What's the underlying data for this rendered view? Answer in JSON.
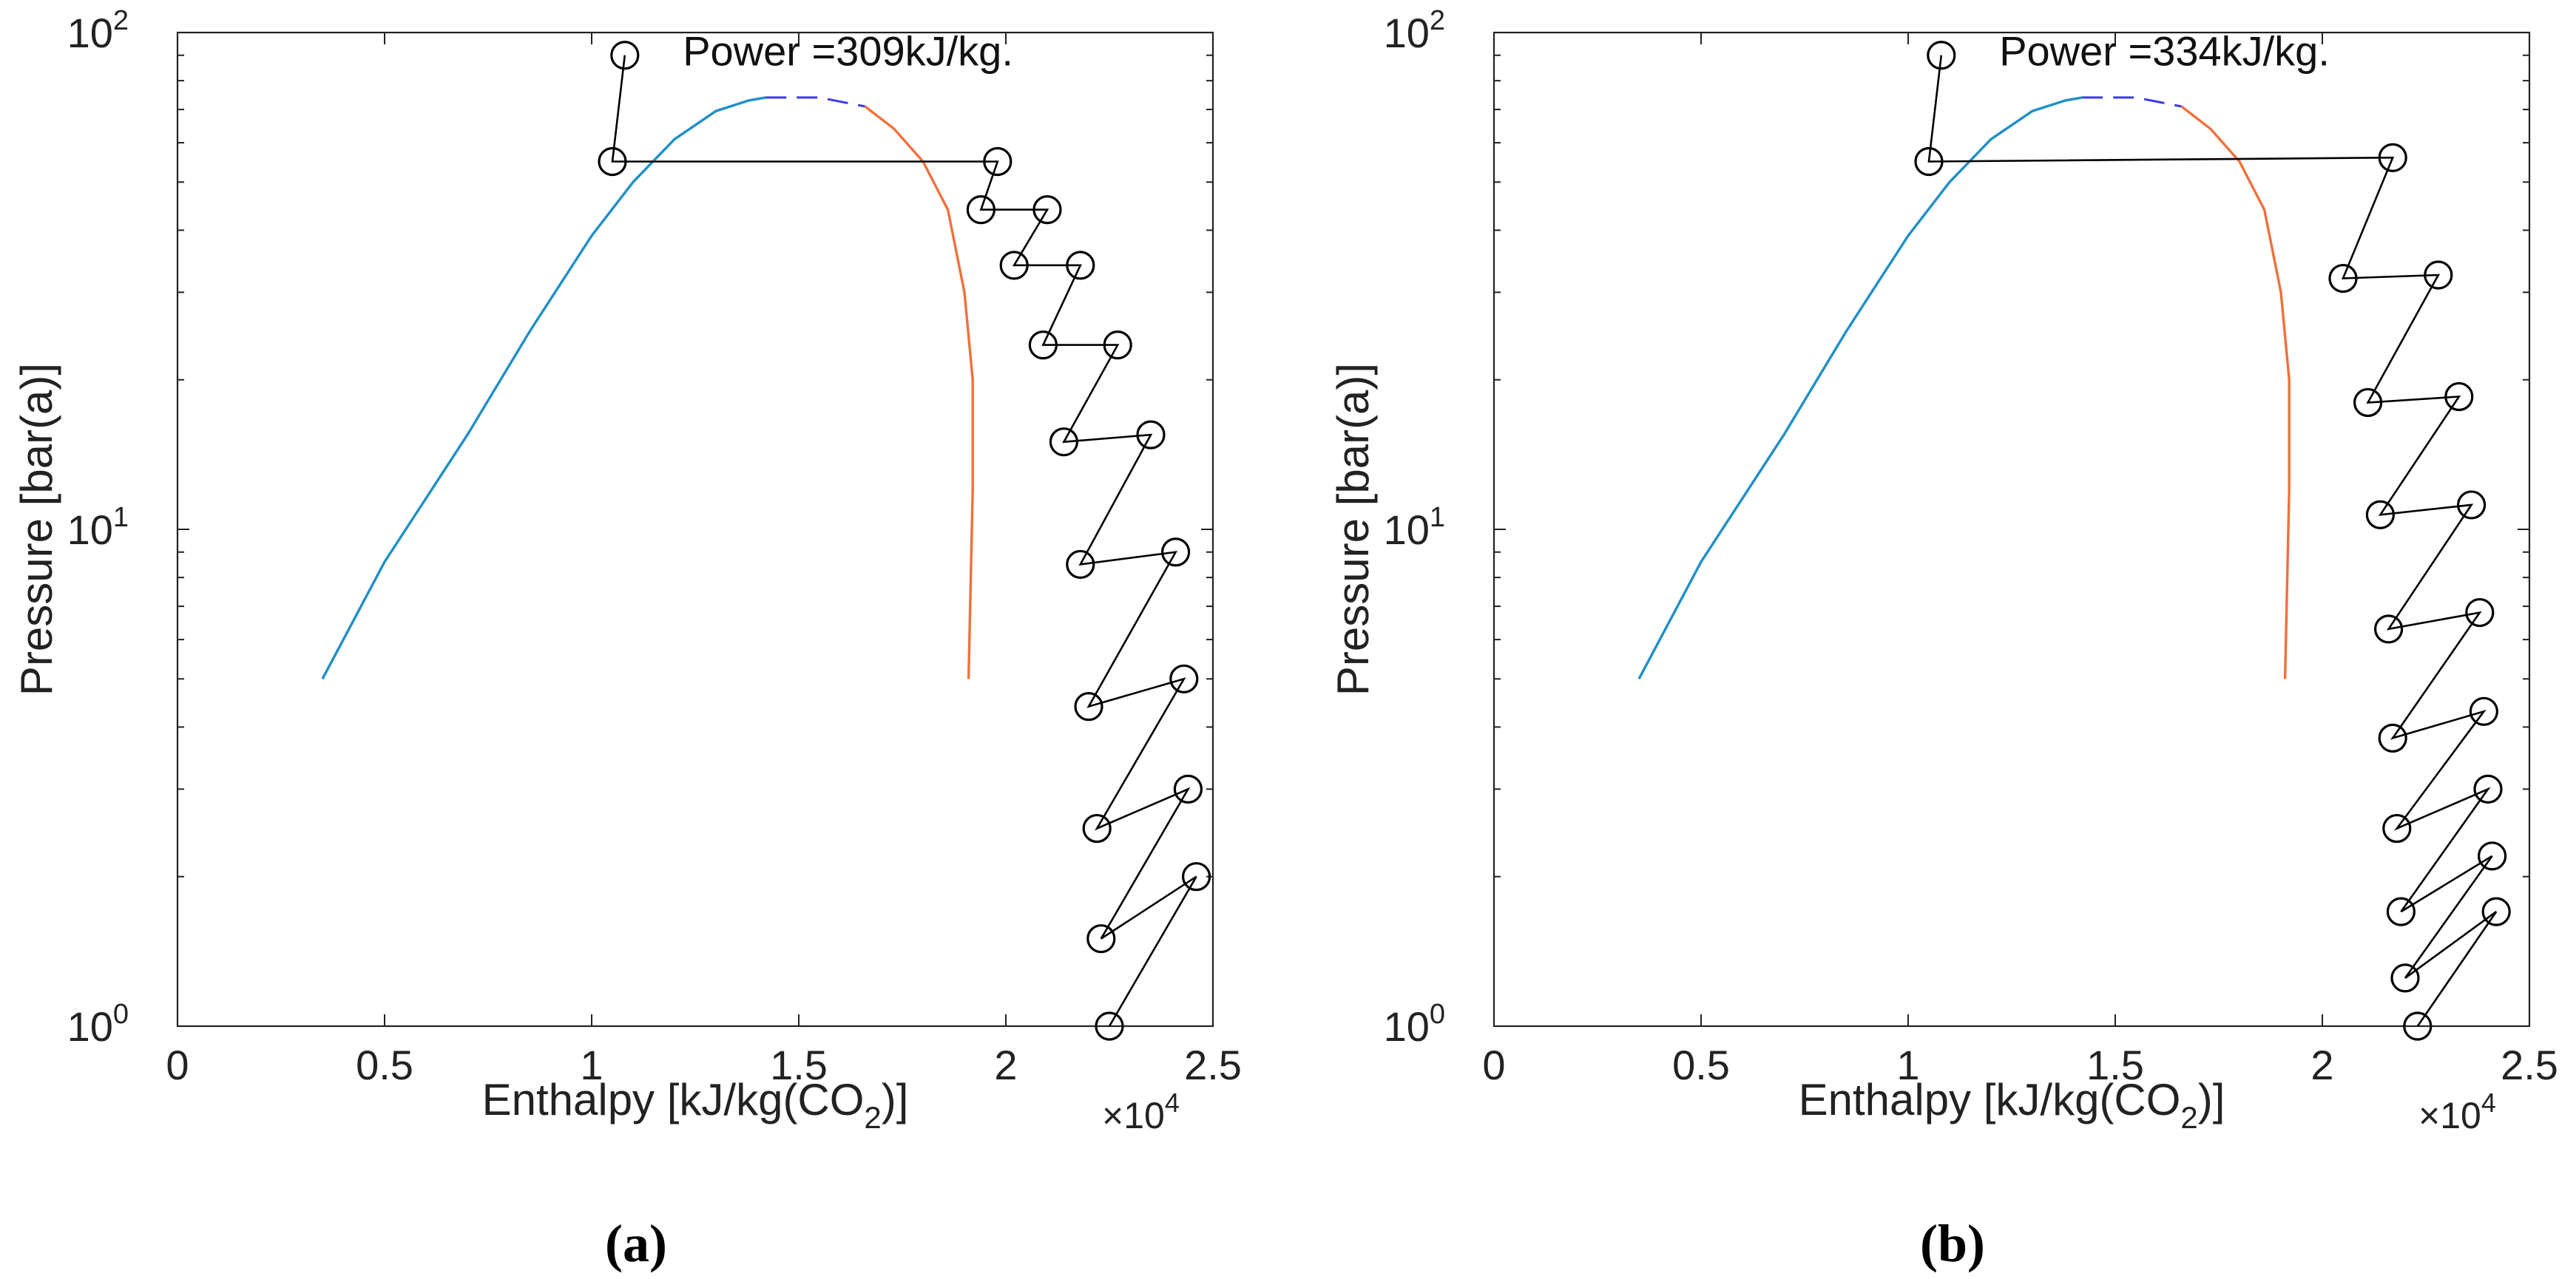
{
  "figure": {
    "captions": [
      "(a)",
      "(b)"
    ]
  },
  "chart_data": [
    {
      "type": "line",
      "title": "",
      "xlabel": "Enthalpy [kJ/kg(CO",
      "xlabel_sub": "2",
      "xlabel_end": ")]",
      "ylabel": "Pressure [bar(a)]",
      "x_multiplier": "×10",
      "x_multiplier_exp": "4",
      "xlim": [
        0,
        2.5
      ],
      "ylim": [
        1,
        100
      ],
      "yscale": "log",
      "x_ticks": [
        0,
        0.5,
        1,
        1.5,
        2,
        2.5
      ],
      "x_tick_labels": [
        "0",
        "0.5",
        "1",
        "1.5",
        "2",
        "2.5"
      ],
      "y_ticks": [
        1,
        10,
        100
      ],
      "y_tick_base": "10",
      "y_tick_exps": [
        "0",
        "1",
        "2"
      ],
      "annotation": "Power =309kJ/kg.",
      "annotation_at": [
        1.22,
        92
      ],
      "colors": {
        "liquid": "#1f8fc8",
        "vapor": "#f0703c",
        "critical": "#3a3ae8",
        "process": "#000000"
      },
      "saturation": {
        "liquid": [
          [
            0.35,
            5.0
          ],
          [
            0.5,
            8.6
          ],
          [
            0.7,
            15.5
          ],
          [
            0.85,
            25.0
          ],
          [
            1.0,
            39.0
          ],
          [
            1.1,
            50.0
          ],
          [
            1.2,
            61.0
          ],
          [
            1.3,
            69.5
          ],
          [
            1.38,
            73.0
          ],
          [
            1.42,
            74.0
          ]
        ],
        "critical": [
          [
            1.42,
            74.0
          ],
          [
            1.55,
            74.0
          ],
          [
            1.66,
            71.0
          ]
        ],
        "vapor": [
          [
            1.66,
            71.0
          ],
          [
            1.73,
            64.0
          ],
          [
            1.8,
            55.0
          ],
          [
            1.86,
            44.0
          ],
          [
            1.9,
            30.0
          ],
          [
            1.92,
            20.0
          ],
          [
            1.92,
            12.0
          ],
          [
            1.91,
            5.0
          ]
        ]
      },
      "process_points": [
        [
          1.08,
          90
        ],
        [
          1.05,
          55
        ],
        [
          1.98,
          55
        ],
        [
          1.94,
          44
        ],
        [
          2.1,
          44
        ],
        [
          2.02,
          34
        ],
        [
          2.18,
          34
        ],
        [
          2.09,
          23.5
        ],
        [
          2.27,
          23.5
        ],
        [
          2.14,
          15
        ],
        [
          2.35,
          15.5
        ],
        [
          2.18,
          8.5
        ],
        [
          2.41,
          9
        ],
        [
          2.2,
          4.4
        ],
        [
          2.43,
          5
        ],
        [
          2.22,
          2.5
        ],
        [
          2.44,
          3
        ],
        [
          2.23,
          1.5
        ],
        [
          2.46,
          2
        ],
        [
          2.25,
          1.0
        ]
      ]
    },
    {
      "type": "line",
      "title": "",
      "xlabel": "Enthalpy [kJ/kg(CO",
      "xlabel_sub": "2",
      "xlabel_end": ")]",
      "ylabel": "Pressure [bar(a)]",
      "x_multiplier": "×10",
      "x_multiplier_exp": "4",
      "xlim": [
        0,
        2.5
      ],
      "ylim": [
        1,
        100
      ],
      "yscale": "log",
      "x_ticks": [
        0,
        0.5,
        1,
        1.5,
        2,
        2.5
      ],
      "x_tick_labels": [
        "0",
        "0.5",
        "1",
        "1.5",
        "2",
        "2.5"
      ],
      "y_ticks": [
        1,
        10,
        100
      ],
      "y_tick_base": "10",
      "y_tick_exps": [
        "0",
        "1",
        "2"
      ],
      "annotation": "Power =334kJ/kg.",
      "annotation_at": [
        1.22,
        92
      ],
      "colors": {
        "liquid": "#1f8fc8",
        "vapor": "#f0703c",
        "critical": "#3a3ae8",
        "process": "#000000"
      },
      "saturation": {
        "liquid": [
          [
            0.35,
            5.0
          ],
          [
            0.5,
            8.6
          ],
          [
            0.7,
            15.5
          ],
          [
            0.85,
            25.0
          ],
          [
            1.0,
            39.0
          ],
          [
            1.1,
            50.0
          ],
          [
            1.2,
            61.0
          ],
          [
            1.3,
            69.5
          ],
          [
            1.38,
            73.0
          ],
          [
            1.42,
            74.0
          ]
        ],
        "critical": [
          [
            1.42,
            74.0
          ],
          [
            1.55,
            74.0
          ],
          [
            1.66,
            71.0
          ]
        ],
        "vapor": [
          [
            1.66,
            71.0
          ],
          [
            1.73,
            64.0
          ],
          [
            1.8,
            55.0
          ],
          [
            1.86,
            44.0
          ],
          [
            1.9,
            30.0
          ],
          [
            1.92,
            20.0
          ],
          [
            1.92,
            12.0
          ],
          [
            1.91,
            5.0
          ]
        ]
      },
      "process_points": [
        [
          1.08,
          90
        ],
        [
          1.05,
          55
        ],
        [
          2.17,
          56
        ],
        [
          2.05,
          32
        ],
        [
          2.28,
          32.5
        ],
        [
          2.11,
          18
        ],
        [
          2.33,
          18.5
        ],
        [
          2.14,
          10.7
        ],
        [
          2.36,
          11.2
        ],
        [
          2.16,
          6.3
        ],
        [
          2.38,
          6.8
        ],
        [
          2.17,
          3.8
        ],
        [
          2.39,
          4.3
        ],
        [
          2.18,
          2.5
        ],
        [
          2.4,
          3
        ],
        [
          2.19,
          1.7
        ],
        [
          2.41,
          2.2
        ],
        [
          2.2,
          1.25
        ],
        [
          2.42,
          1.7
        ],
        [
          2.23,
          1.0
        ]
      ]
    }
  ]
}
